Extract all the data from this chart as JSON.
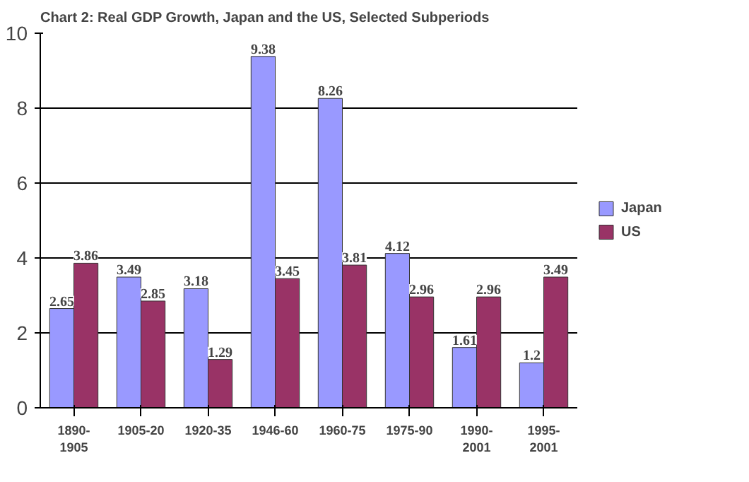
{
  "chart_data": {
    "type": "bar",
    "title": "Chart 2: Real GDP Growth, Japan and the US, Selected Subperiods",
    "categories": [
      "1890-\n1905",
      "1905-20",
      "1920-35",
      "1946-60",
      "1960-75",
      "1975-90",
      "1990-\n2001",
      "1995-\n2001"
    ],
    "series": [
      {
        "name": "Japan",
        "color": "#9999ff",
        "values": [
          2.65,
          3.49,
          3.18,
          9.38,
          8.26,
          4.12,
          1.61,
          1.2
        ]
      },
      {
        "name": "US",
        "color": "#993366",
        "values": [
          3.86,
          2.85,
          1.29,
          3.45,
          3.81,
          2.96,
          2.96,
          3.49
        ]
      }
    ],
    "ylim": [
      0,
      10
    ],
    "yticks": [
      0,
      2,
      4,
      6,
      8,
      10
    ],
    "grid": "y",
    "legend": "right",
    "data_labels": true
  }
}
